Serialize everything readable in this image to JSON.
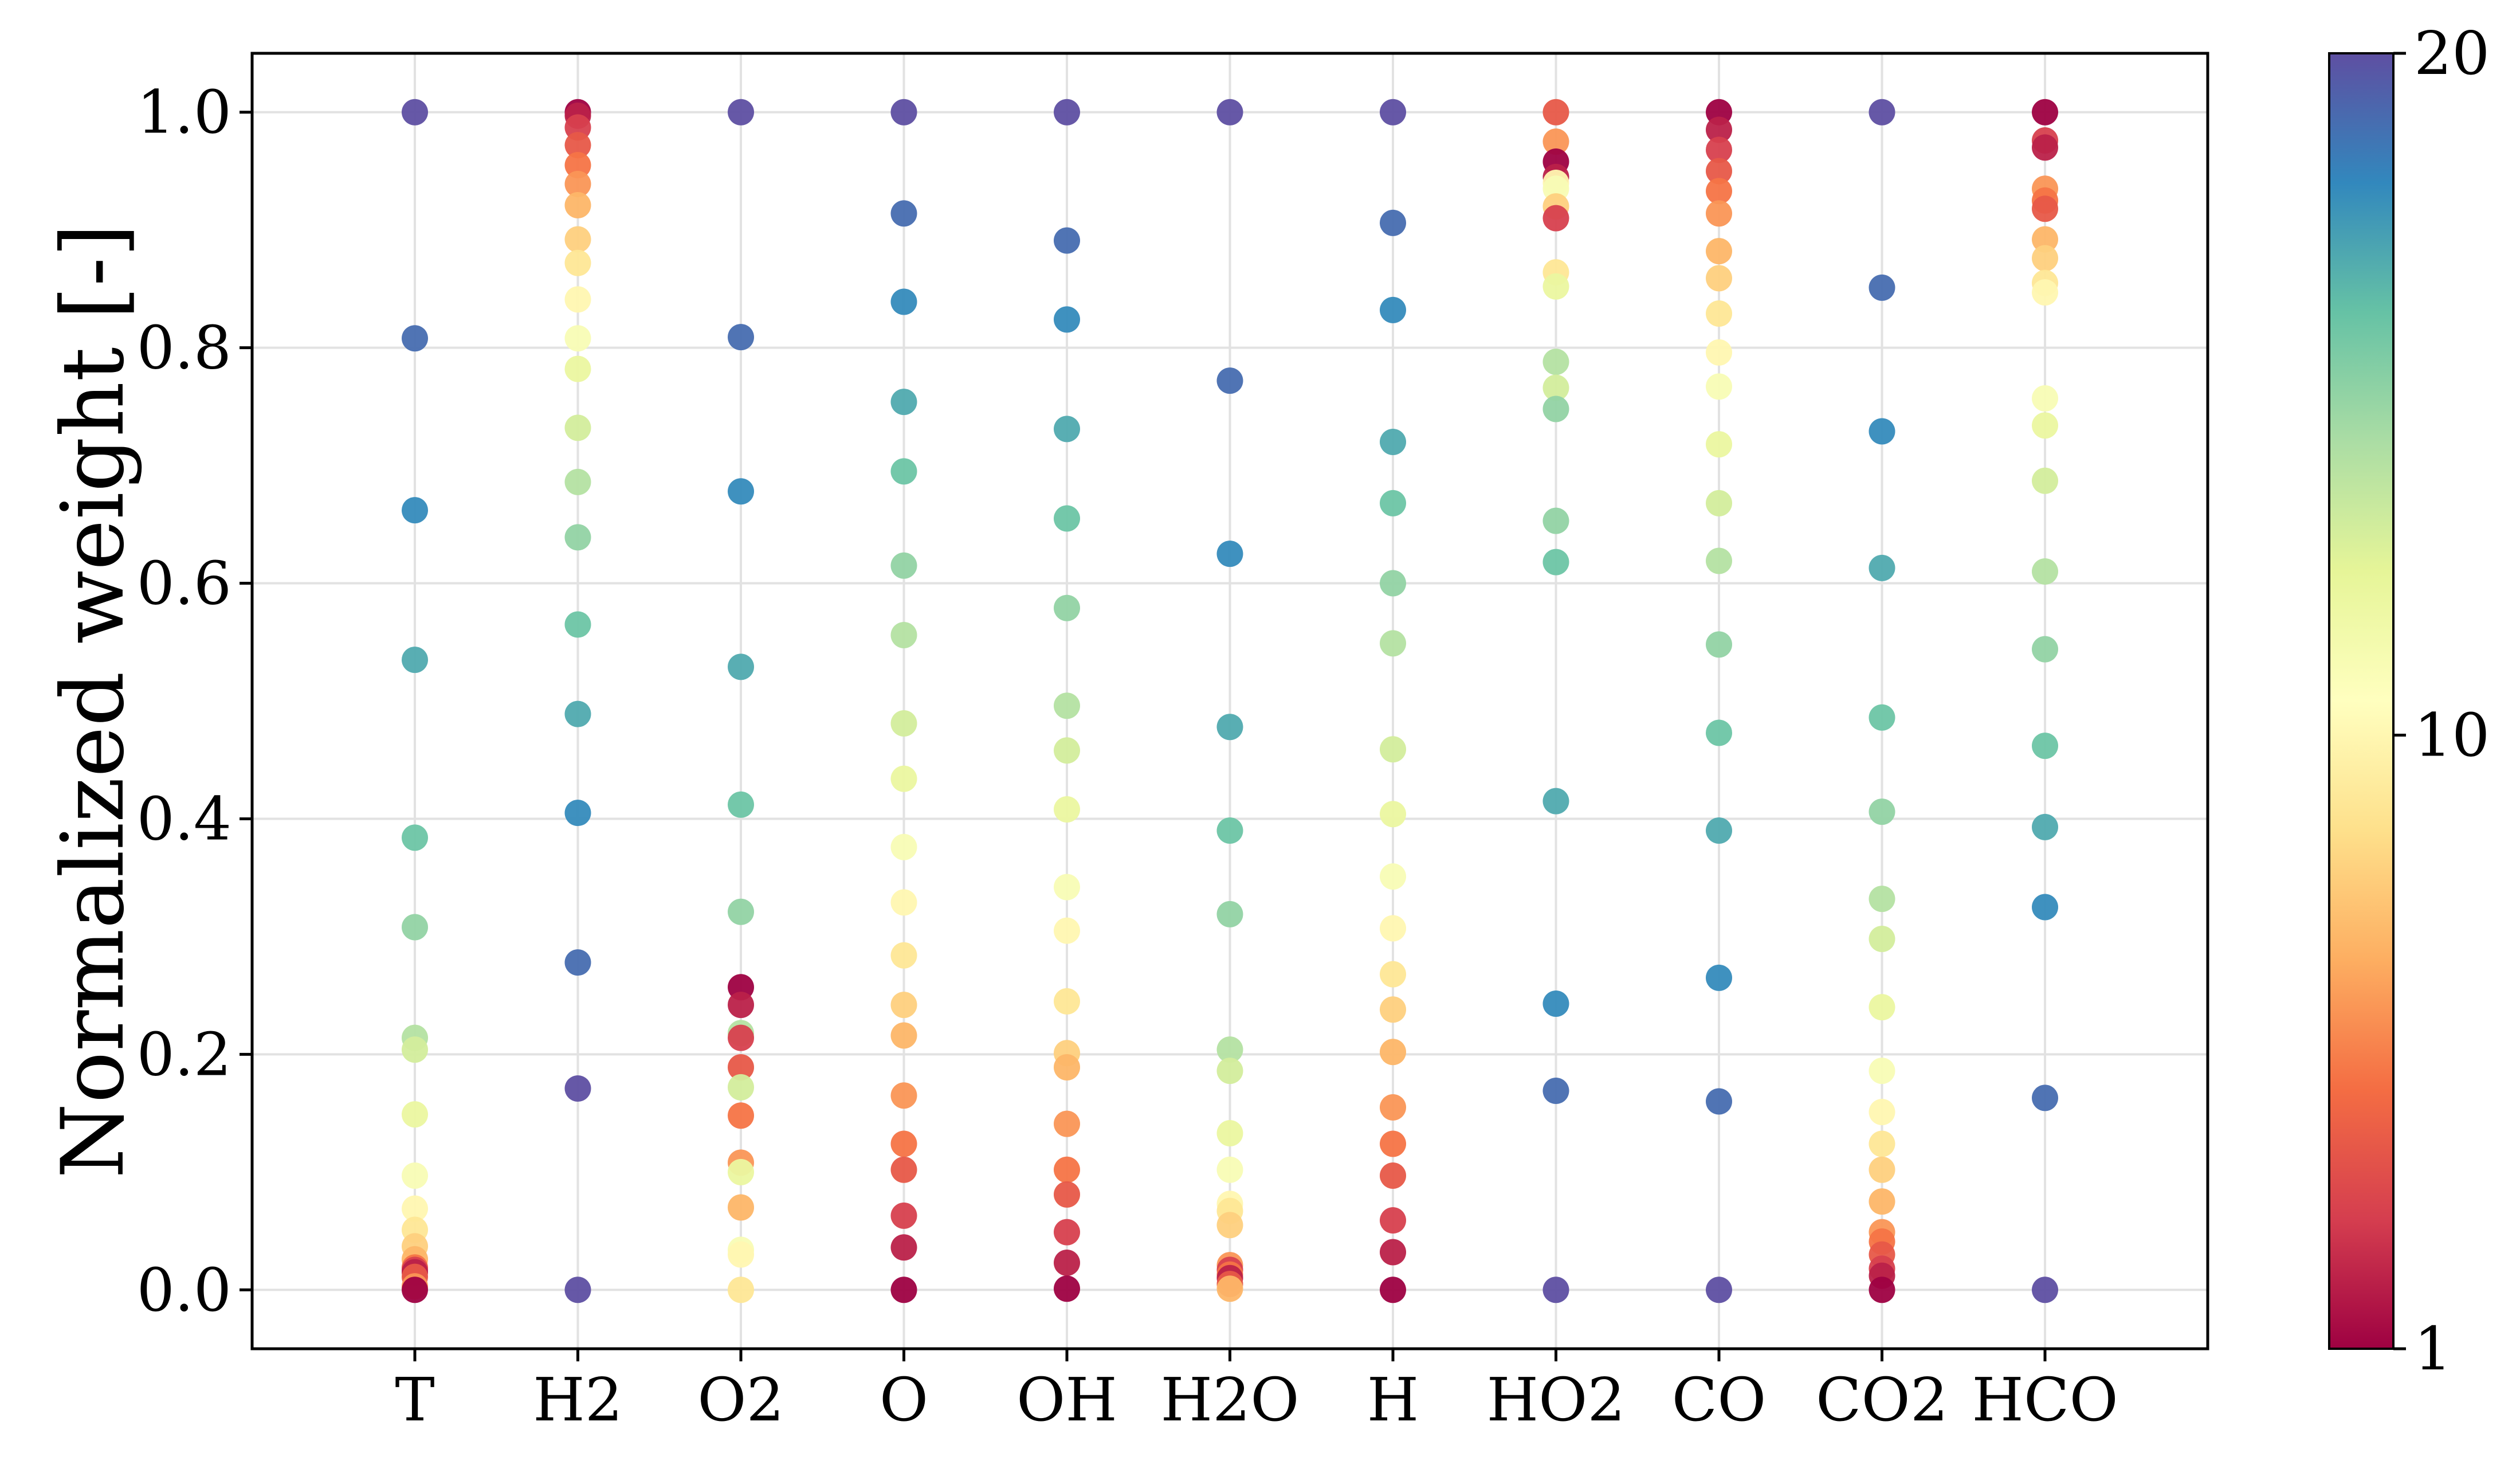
{
  "chart_data": {
    "type": "scatter",
    "title": "",
    "xlabel": "",
    "ylabel": "Normalized weight [-]",
    "ylim": [
      -0.05,
      1.05
    ],
    "grid": true,
    "categories": [
      "T",
      "H2",
      "O2",
      "O",
      "OH",
      "H2O",
      "H",
      "HO2",
      "CO",
      "CO2",
      "HCO"
    ],
    "y_ticks": [
      "0.0",
      "0.2",
      "0.4",
      "0.6",
      "0.8",
      "1.0"
    ],
    "colorbar": {
      "range": [
        1,
        20
      ],
      "ticks": [
        "1",
        "10",
        "20"
      ],
      "colormap": "Spectral",
      "colors": [
        "#9e0142",
        "#d53e4f",
        "#f46d43",
        "#fdae61",
        "#fee08b",
        "#ffffbf",
        "#e6f598",
        "#abdda4",
        "#66c2a5",
        "#3288bd",
        "#5e4fa2"
      ]
    },
    "series": [
      {
        "category": "T",
        "points": [
          [
            1.0,
            20
          ],
          [
            0.808,
            19
          ],
          [
            0.662,
            18
          ],
          [
            0.535,
            17
          ],
          [
            0.384,
            16
          ],
          [
            0.308,
            15
          ],
          [
            0.214,
            14
          ],
          [
            0.204,
            13
          ],
          [
            0.149,
            12
          ],
          [
            0.097,
            11
          ],
          [
            0.069,
            10
          ],
          [
            0.051,
            9
          ],
          [
            0.037,
            8
          ],
          [
            0.026,
            7
          ],
          [
            0.019,
            5
          ],
          [
            0.017,
            3
          ],
          [
            0.015,
            2
          ],
          [
            0.011,
            4
          ],
          [
            0.003,
            6
          ],
          [
            0.0,
            1
          ]
        ]
      },
      {
        "category": "H2",
        "points": [
          [
            1.0,
            1
          ],
          [
            0.997,
            2
          ],
          [
            0.987,
            3
          ],
          [
            0.972,
            4
          ],
          [
            0.955,
            5
          ],
          [
            0.939,
            6
          ],
          [
            0.921,
            7
          ],
          [
            0.892,
            8
          ],
          [
            0.872,
            9
          ],
          [
            0.841,
            10
          ],
          [
            0.808,
            11
          ],
          [
            0.782,
            12
          ],
          [
            0.732,
            13
          ],
          [
            0.686,
            14
          ],
          [
            0.639,
            15
          ],
          [
            0.565,
            16
          ],
          [
            0.489,
            17
          ],
          [
            0.405,
            18
          ],
          [
            0.278,
            19
          ],
          [
            0.171,
            20
          ],
          [
            0.0,
            20
          ]
        ]
      },
      {
        "category": "O2",
        "points": [
          [
            1.0,
            20
          ],
          [
            0.809,
            19
          ],
          [
            0.678,
            18
          ],
          [
            0.529,
            17
          ],
          [
            0.412,
            16
          ],
          [
            0.321,
            15
          ],
          [
            0.257,
            1
          ],
          [
            0.242,
            2
          ],
          [
            0.218,
            14
          ],
          [
            0.214,
            3
          ],
          [
            0.189,
            4
          ],
          [
            0.172,
            13
          ],
          [
            0.148,
            5
          ],
          [
            0.108,
            6
          ],
          [
            0.1,
            12
          ],
          [
            0.07,
            7
          ],
          [
            0.034,
            11
          ],
          [
            0.03,
            10
          ],
          [
            0.0,
            9
          ]
        ]
      },
      {
        "category": "O",
        "points": [
          [
            1.0,
            20
          ],
          [
            0.914,
            19
          ],
          [
            0.839,
            18
          ],
          [
            0.754,
            17
          ],
          [
            0.695,
            16
          ],
          [
            0.615,
            15
          ],
          [
            0.556,
            14
          ],
          [
            0.481,
            13
          ],
          [
            0.434,
            12
          ],
          [
            0.376,
            11
          ],
          [
            0.329,
            10
          ],
          [
            0.284,
            9
          ],
          [
            0.242,
            8
          ],
          [
            0.216,
            7
          ],
          [
            0.165,
            6
          ],
          [
            0.124,
            5
          ],
          [
            0.102,
            4
          ],
          [
            0.063,
            3
          ],
          [
            0.036,
            2
          ],
          [
            0.0,
            1
          ]
        ]
      },
      {
        "category": "OH",
        "points": [
          [
            1.0,
            20
          ],
          [
            0.891,
            19
          ],
          [
            0.824,
            18
          ],
          [
            0.731,
            17
          ],
          [
            0.655,
            16
          ],
          [
            0.579,
            15
          ],
          [
            0.496,
            14
          ],
          [
            0.458,
            13
          ],
          [
            0.408,
            12
          ],
          [
            0.342,
            11
          ],
          [
            0.305,
            10
          ],
          [
            0.245,
            9
          ],
          [
            0.201,
            8
          ],
          [
            0.189,
            7
          ],
          [
            0.141,
            6
          ],
          [
            0.102,
            5
          ],
          [
            0.081,
            4
          ],
          [
            0.049,
            3
          ],
          [
            0.023,
            2
          ],
          [
            0.001,
            1
          ]
        ]
      },
      {
        "category": "H2O",
        "points": [
          [
            1.0,
            20
          ],
          [
            0.772,
            19
          ],
          [
            0.625,
            18
          ],
          [
            0.478,
            17
          ],
          [
            0.39,
            16
          ],
          [
            0.319,
            15
          ],
          [
            0.204,
            14
          ],
          [
            0.186,
            13
          ],
          [
            0.133,
            12
          ],
          [
            0.102,
            11
          ],
          [
            0.073,
            10
          ],
          [
            0.067,
            9
          ],
          [
            0.055,
            8
          ],
          [
            0.021,
            6
          ],
          [
            0.017,
            3
          ],
          [
            0.013,
            5
          ],
          [
            0.01,
            2
          ],
          [
            0.005,
            4
          ],
          [
            0.001,
            7
          ]
        ]
      },
      {
        "category": "H",
        "points": [
          [
            1.0,
            20
          ],
          [
            0.906,
            19
          ],
          [
            0.832,
            18
          ],
          [
            0.72,
            17
          ],
          [
            0.668,
            16
          ],
          [
            0.6,
            15
          ],
          [
            0.549,
            14
          ],
          [
            0.459,
            13
          ],
          [
            0.404,
            12
          ],
          [
            0.351,
            11
          ],
          [
            0.307,
            10
          ],
          [
            0.268,
            9
          ],
          [
            0.238,
            8
          ],
          [
            0.202,
            7
          ],
          [
            0.155,
            6
          ],
          [
            0.124,
            5
          ],
          [
            0.097,
            4
          ],
          [
            0.059,
            3
          ],
          [
            0.032,
            2
          ],
          [
            0.0,
            1
          ]
        ]
      },
      {
        "category": "HO2",
        "points": [
          [
            1.0,
            4
          ],
          [
            0.975,
            6
          ],
          [
            0.958,
            1
          ],
          [
            0.945,
            2
          ],
          [
            0.94,
            10
          ],
          [
            0.935,
            11
          ],
          [
            0.92,
            8
          ],
          [
            0.91,
            3
          ],
          [
            0.864,
            9
          ],
          [
            0.852,
            12
          ],
          [
            0.788,
            14
          ],
          [
            0.766,
            13
          ],
          [
            0.748,
            15
          ],
          [
            0.653,
            15
          ],
          [
            0.618,
            16
          ],
          [
            0.415,
            17
          ],
          [
            0.243,
            18
          ],
          [
            0.169,
            19
          ],
          [
            0.0,
            20
          ]
        ]
      },
      {
        "category": "CO",
        "points": [
          [
            1.0,
            1
          ],
          [
            0.985,
            2
          ],
          [
            0.968,
            3
          ],
          [
            0.95,
            4
          ],
          [
            0.933,
            5
          ],
          [
            0.914,
            6
          ],
          [
            0.882,
            7
          ],
          [
            0.859,
            8
          ],
          [
            0.829,
            9
          ],
          [
            0.796,
            10
          ],
          [
            0.767,
            11
          ],
          [
            0.718,
            12
          ],
          [
            0.668,
            13
          ],
          [
            0.619,
            14
          ],
          [
            0.548,
            15
          ],
          [
            0.473,
            16
          ],
          [
            0.39,
            17
          ],
          [
            0.265,
            18
          ],
          [
            0.16,
            19
          ],
          [
            0.0,
            20
          ]
        ]
      },
      {
        "category": "CO2",
        "points": [
          [
            1.0,
            20
          ],
          [
            0.851,
            19
          ],
          [
            0.729,
            18
          ],
          [
            0.613,
            17
          ],
          [
            0.486,
            16
          ],
          [
            0.406,
            15
          ],
          [
            0.332,
            14
          ],
          [
            0.298,
            13
          ],
          [
            0.24,
            12
          ],
          [
            0.186,
            11
          ],
          [
            0.151,
            10
          ],
          [
            0.124,
            9
          ],
          [
            0.102,
            8
          ],
          [
            0.075,
            7
          ],
          [
            0.049,
            6
          ],
          [
            0.041,
            5
          ],
          [
            0.03,
            4
          ],
          [
            0.018,
            3
          ],
          [
            0.012,
            2
          ],
          [
            0.0,
            1
          ]
        ]
      },
      {
        "category": "HCO",
        "points": [
          [
            1.0,
            1
          ],
          [
            0.976,
            3
          ],
          [
            0.97,
            2
          ],
          [
            0.935,
            6
          ],
          [
            0.925,
            5
          ],
          [
            0.918,
            4
          ],
          [
            0.892,
            7
          ],
          [
            0.876,
            8
          ],
          [
            0.855,
            9
          ],
          [
            0.847,
            10
          ],
          [
            0.757,
            11
          ],
          [
            0.734,
            12
          ],
          [
            0.687,
            13
          ],
          [
            0.61,
            14
          ],
          [
            0.544,
            15
          ],
          [
            0.462,
            16
          ],
          [
            0.393,
            17
          ],
          [
            0.325,
            18
          ],
          [
            0.163,
            19
          ],
          [
            0.0,
            20
          ]
        ]
      }
    ]
  }
}
